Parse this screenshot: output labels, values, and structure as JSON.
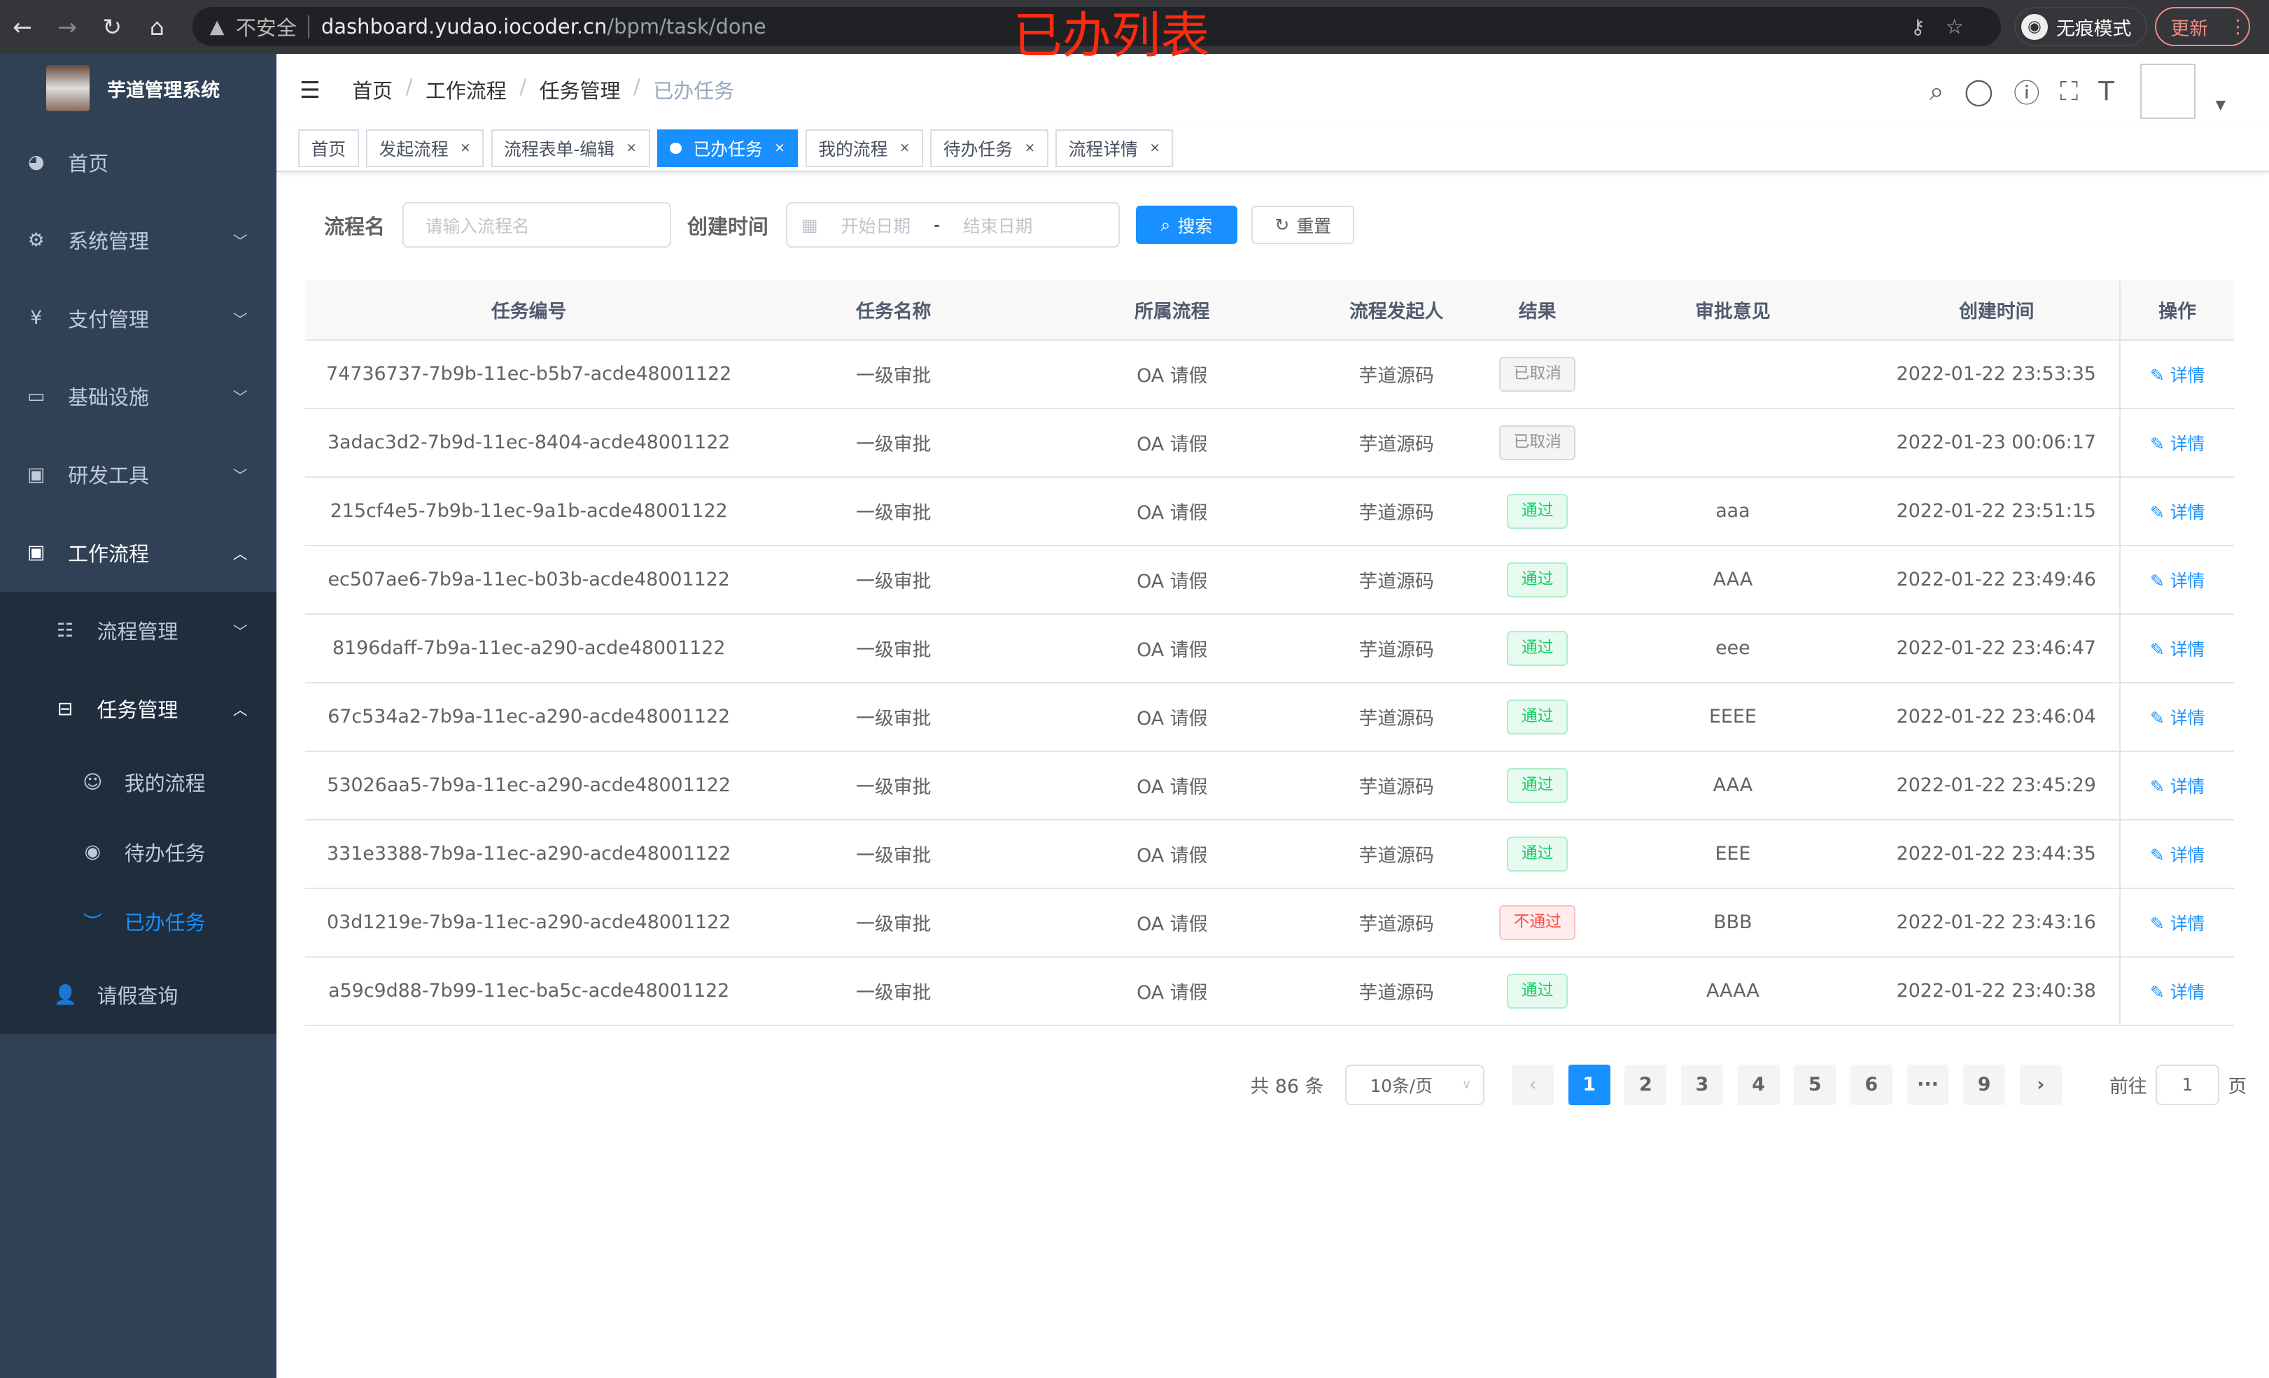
{
  "browser": {
    "security": "不安全",
    "url_host": "dashboard.yudao.iocoder.cn",
    "url_path": "/bpm/task/done",
    "incognito": "无痕模式",
    "update": "更新"
  },
  "overlay_title": "已办列表",
  "app": {
    "title": "芋道管理系统"
  },
  "sidebar": {
    "items": [
      {
        "label": "首页",
        "icon": "dashboard-icon"
      },
      {
        "label": "系统管理",
        "icon": "gear-icon"
      },
      {
        "label": "支付管理",
        "icon": "yen-icon"
      },
      {
        "label": "基础设施",
        "icon": "monitor-icon"
      },
      {
        "label": "研发工具",
        "icon": "toolbox-icon"
      },
      {
        "label": "工作流程",
        "icon": "toolbox-icon"
      }
    ],
    "workflow_sub": [
      {
        "label": "流程管理"
      },
      {
        "label": "任务管理"
      }
    ],
    "task_sub": [
      {
        "label": "我的流程"
      },
      {
        "label": "待办任务"
      },
      {
        "label": "已办任务"
      }
    ],
    "leave": {
      "label": "请假查询"
    }
  },
  "breadcrumb": [
    "首页",
    "工作流程",
    "任务管理",
    "已办任务"
  ],
  "tags": [
    "首页",
    "发起流程",
    "流程表单-编辑",
    "已办任务",
    "我的流程",
    "待办任务",
    "流程详情"
  ],
  "search": {
    "name_label": "流程名",
    "name_placeholder": "请输入流程名",
    "time_label": "创建时间",
    "start_placeholder": "开始日期",
    "range_sep": "-",
    "end_placeholder": "结束日期",
    "search_btn": "搜索",
    "reset_btn": "重置"
  },
  "table": {
    "headers": [
      "任务编号",
      "任务名称",
      "所属流程",
      "流程发起人",
      "结果",
      "审批意见",
      "创建时间",
      "操作"
    ],
    "action_label": "详情",
    "rows": [
      [
        "74736737-7b9b-11ec-b5b7-acde48001122",
        "一级审批",
        "OA 请假",
        "芋道源码",
        "已取消",
        "",
        "2022-01-22 23:53:35"
      ],
      [
        "3adac3d2-7b9d-11ec-8404-acde48001122",
        "一级审批",
        "OA 请假",
        "芋道源码",
        "已取消",
        "",
        "2022-01-23 00:06:17"
      ],
      [
        "215cf4e5-7b9b-11ec-9a1b-acde48001122",
        "一级审批",
        "OA 请假",
        "芋道源码",
        "通过",
        "aaa",
        "2022-01-22 23:51:15"
      ],
      [
        "ec507ae6-7b9a-11ec-b03b-acde48001122",
        "一级审批",
        "OA 请假",
        "芋道源码",
        "通过",
        "AAA",
        "2022-01-22 23:49:46"
      ],
      [
        "8196daff-7b9a-11ec-a290-acde48001122",
        "一级审批",
        "OA 请假",
        "芋道源码",
        "通过",
        "eee",
        "2022-01-22 23:46:47"
      ],
      [
        "67c534a2-7b9a-11ec-a290-acde48001122",
        "一级审批",
        "OA 请假",
        "芋道源码",
        "通过",
        "EEEE",
        "2022-01-22 23:46:04"
      ],
      [
        "53026aa5-7b9a-11ec-a290-acde48001122",
        "一级审批",
        "OA 请假",
        "芋道源码",
        "通过",
        "AAA",
        "2022-01-22 23:45:29"
      ],
      [
        "331e3388-7b9a-11ec-a290-acde48001122",
        "一级审批",
        "OA 请假",
        "芋道源码",
        "通过",
        "EEE",
        "2022-01-22 23:44:35"
      ],
      [
        "03d1219e-7b9a-11ec-a290-acde48001122",
        "一级审批",
        "OA 请假",
        "芋道源码",
        "不通过",
        "BBB",
        "2022-01-22 23:43:16"
      ],
      [
        "a59c9d88-7b99-11ec-ba5c-acde48001122",
        "一级审批",
        "OA 请假",
        "芋道源码",
        "通过",
        "AAAA",
        "2022-01-22 23:40:38"
      ]
    ]
  },
  "result_colors": {
    "已取消": "#909399",
    "通过": "#13ce66",
    "不通过": "#ff4949"
  },
  "pagination": {
    "total": "共 86 条",
    "page_size": "10条/页",
    "pages": [
      "1",
      "2",
      "3",
      "4",
      "5",
      "6",
      "···",
      "9"
    ],
    "current": "1",
    "goto_label": "前往",
    "goto_value": "1",
    "page_suffix": "页"
  },
  "accent": "#1890ff"
}
